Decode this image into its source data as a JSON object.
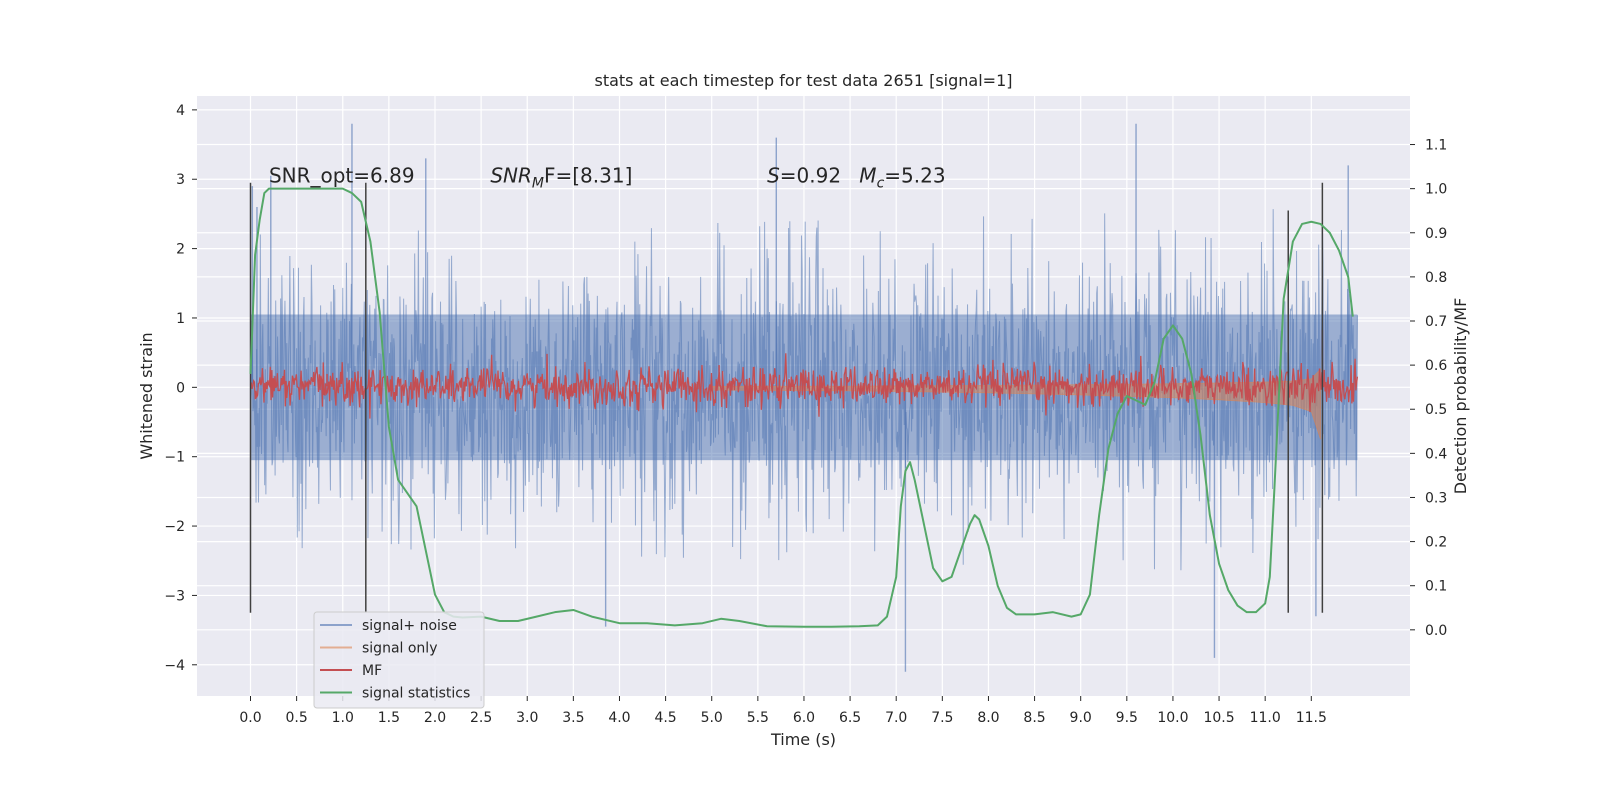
{
  "chart_data": {
    "type": "line",
    "title": "stats at each timestep for test data 2651 [signal=1]",
    "xlabel": "Time (s)",
    "ylabel": "Whitened strain",
    "y2label": "Detection probability/MF",
    "xlim": [
      -0.58,
      12.57
    ],
    "ylim": [
      -4.45,
      4.2
    ],
    "y2lim": [
      -0.15,
      1.21
    ],
    "xticks": [
      0.0,
      0.5,
      1.0,
      1.5,
      2.0,
      2.5,
      3.0,
      3.5,
      4.0,
      4.5,
      5.0,
      5.5,
      6.0,
      6.5,
      7.0,
      7.5,
      8.0,
      8.5,
      9.0,
      9.5,
      10.0,
      10.5,
      11.0,
      11.5
    ],
    "xtick_labels": [
      "0.0",
      "0.5",
      "1.0",
      "1.5",
      "2.0",
      "2.5",
      "3.0",
      "3.5",
      "4.0",
      "4.5",
      "5.0",
      "5.5",
      "6.0",
      "6.5",
      "7.0",
      "7.5",
      "8.0",
      "8.5",
      "9.0",
      "9.5",
      "10.0",
      "10.5",
      "11.0",
      "11.5"
    ],
    "yticks": [
      -4,
      -3,
      -2,
      -1,
      0,
      1,
      2,
      3,
      4
    ],
    "ytick_labels": [
      "−4",
      "−3",
      "−2",
      "−1",
      "0",
      "1",
      "2",
      "3",
      "4"
    ],
    "y2ticks": [
      0.0,
      0.1,
      0.2,
      0.3,
      0.4,
      0.5,
      0.6,
      0.7,
      0.8,
      0.9,
      1.0,
      1.1
    ],
    "y2tick_labels": [
      "0.0",
      "0.1",
      "0.2",
      "0.3",
      "0.4",
      "0.5",
      "0.6",
      "0.7",
      "0.8",
      "0.9",
      "1.0",
      "1.1"
    ],
    "grid": true,
    "legend_placement": "lower-left",
    "annotations": [
      {
        "prefix": "SNR_opt=6.89",
        "x": 0.2,
        "y": 2.95
      },
      {
        "prefix": "SNR",
        "sub": "M",
        "suffix": "F=[8.31]",
        "italic": true,
        "x": 2.6,
        "y": 2.95
      },
      {
        "prefix": "S",
        "suffix": "=0.92",
        "italic": true,
        "x": 5.6,
        "y": 2.95
      },
      {
        "prefix": "M",
        "sub": "c",
        "suffix": "=5.23",
        "italic": true,
        "x": 6.6,
        "y": 2.95
      }
    ],
    "vlines": [
      {
        "x": 0.0,
        "ymin": -3.25,
        "ymax": 2.95
      },
      {
        "x": 1.25,
        "ymin": -3.25,
        "ymax": 2.95
      },
      {
        "x": 11.25,
        "ymin": -3.25,
        "ymax": 2.55
      },
      {
        "x": 11.62,
        "ymin": -3.25,
        "ymax": 2.95
      }
    ],
    "series": [
      {
        "name": "signal+ noise",
        "color": "#4c72b0",
        "axis": "left",
        "kind": "noise-band",
        "x": [
          0.0,
          12.0
        ],
        "envelope": {
          "upper": [
            2.2,
            3.8
          ],
          "lower": [
            -2.3,
            -4.1
          ],
          "core": [
            1.05,
            -1.05
          ]
        },
        "peaks": [
          {
            "x": 0.02,
            "y": 2.9
          },
          {
            "x": 0.07,
            "y": 2.6
          },
          {
            "x": 0.22,
            "y": 3.05
          },
          {
            "x": 1.1,
            "y": 3.8
          },
          {
            "x": 1.9,
            "y": 3.3
          },
          {
            "x": 5.7,
            "y": 3.6
          },
          {
            "x": 9.6,
            "y": 3.8
          },
          {
            "x": 11.9,
            "y": 3.2
          },
          {
            "x": 3.85,
            "y": -3.45
          },
          {
            "x": 7.1,
            "y": -4.1
          },
          {
            "x": 10.45,
            "y": -3.9
          },
          {
            "x": 11.55,
            "y": -3.3
          }
        ]
      },
      {
        "name": "signal only",
        "color": "#dd8452",
        "axis": "left",
        "kind": "chirp",
        "x": [
          5.0,
          6.5,
          8.0,
          9.0,
          10.0,
          10.5,
          11.0,
          11.3,
          11.5,
          11.6
        ],
        "amplitude": [
          0.04,
          0.05,
          0.08,
          0.11,
          0.15,
          0.18,
          0.22,
          0.26,
          0.35,
          0.75
        ]
      },
      {
        "name": "MF",
        "color": "#c44e52",
        "axis": "right",
        "kind": "noise-band",
        "x": [
          0.0,
          12.0
        ],
        "mean": 0.552,
        "spread": 0.022,
        "peaks": [
          {
            "x": 11.62,
            "y": 0.68
          },
          {
            "x": 5.08,
            "y": 0.6
          },
          {
            "x": 0.83,
            "y": 0.58
          }
        ]
      },
      {
        "name": "signal statistics",
        "color": "#55a868",
        "axis": "right",
        "kind": "line",
        "x": [
          0.0,
          0.05,
          0.1,
          0.15,
          0.2,
          0.3,
          0.5,
          0.8,
          1.0,
          1.1,
          1.2,
          1.3,
          1.4,
          1.5,
          1.6,
          1.7,
          1.8,
          1.9,
          2.0,
          2.1,
          2.2,
          2.3,
          2.5,
          2.7,
          2.9,
          3.1,
          3.3,
          3.5,
          3.7,
          4.0,
          4.3,
          4.6,
          4.9,
          5.1,
          5.3,
          5.6,
          6.0,
          6.3,
          6.6,
          6.8,
          6.9,
          7.0,
          7.05,
          7.1,
          7.15,
          7.2,
          7.3,
          7.4,
          7.5,
          7.6,
          7.7,
          7.8,
          7.85,
          7.9,
          8.0,
          8.1,
          8.2,
          8.3,
          8.5,
          8.7,
          8.9,
          9.0,
          9.1,
          9.2,
          9.3,
          9.4,
          9.5,
          9.6,
          9.7,
          9.8,
          9.9,
          10.0,
          10.1,
          10.2,
          10.3,
          10.4,
          10.5,
          10.6,
          10.7,
          10.8,
          10.9,
          11.0,
          11.05,
          11.1,
          11.2,
          11.3,
          11.4,
          11.5,
          11.6,
          11.7,
          11.8,
          11.9,
          11.95
        ],
        "y": [
          0.58,
          0.85,
          0.93,
          0.99,
          1.0,
          1.0,
          1.0,
          1.0,
          1.0,
          0.99,
          0.97,
          0.88,
          0.72,
          0.46,
          0.34,
          0.31,
          0.28,
          0.18,
          0.08,
          0.04,
          0.03,
          0.028,
          0.03,
          0.02,
          0.02,
          0.03,
          0.04,
          0.045,
          0.03,
          0.015,
          0.015,
          0.01,
          0.015,
          0.025,
          0.02,
          0.008,
          0.007,
          0.007,
          0.008,
          0.01,
          0.03,
          0.12,
          0.28,
          0.36,
          0.38,
          0.34,
          0.24,
          0.14,
          0.11,
          0.12,
          0.18,
          0.24,
          0.26,
          0.25,
          0.19,
          0.1,
          0.05,
          0.035,
          0.035,
          0.04,
          0.03,
          0.035,
          0.08,
          0.26,
          0.41,
          0.49,
          0.53,
          0.52,
          0.51,
          0.56,
          0.66,
          0.69,
          0.66,
          0.58,
          0.44,
          0.26,
          0.15,
          0.09,
          0.055,
          0.04,
          0.04,
          0.06,
          0.12,
          0.32,
          0.75,
          0.88,
          0.92,
          0.925,
          0.92,
          0.9,
          0.86,
          0.8,
          0.71
        ]
      }
    ],
    "legend": [
      {
        "label": "signal+ noise",
        "color": "#4c72b0"
      },
      {
        "label": "signal only",
        "color": "#dd8452"
      },
      {
        "label": "MF",
        "color": "#c44e52"
      },
      {
        "label": "signal statistics",
        "color": "#55a868"
      }
    ]
  }
}
